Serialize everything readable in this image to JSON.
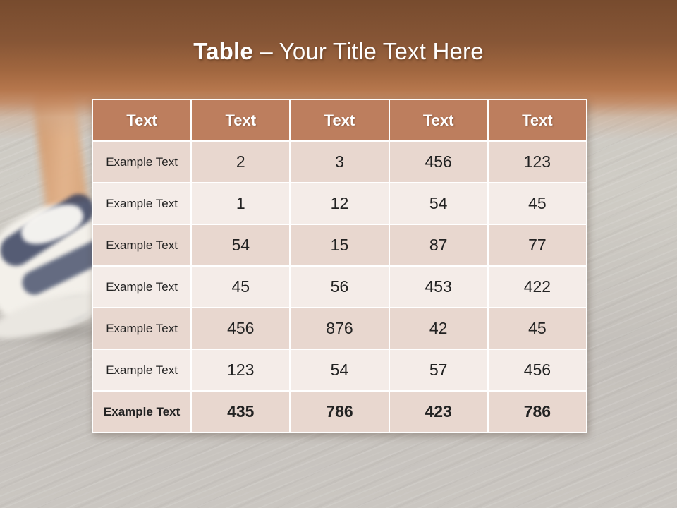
{
  "slide": {
    "title": {
      "bold": "Table",
      "rest": "– Your Title Text Here"
    }
  },
  "table": {
    "headers": [
      "Text",
      "Text",
      "Text",
      "Text",
      "Text"
    ],
    "rows": [
      {
        "label": "Example Text",
        "values": [
          "2",
          "3",
          "456",
          "123"
        ]
      },
      {
        "label": "Example Text",
        "values": [
          "1",
          "12",
          "54",
          "45"
        ]
      },
      {
        "label": "Example Text",
        "values": [
          "54",
          "15",
          "87",
          "77"
        ]
      },
      {
        "label": "Example Text",
        "values": [
          "45",
          "56",
          "453",
          "422"
        ]
      },
      {
        "label": "Example Text",
        "values": [
          "456",
          "876",
          "42",
          "45"
        ]
      },
      {
        "label": "Example Text",
        "values": [
          "123",
          "54",
          "57",
          "456"
        ]
      },
      {
        "label": "Example Text",
        "values": [
          "435",
          "786",
          "423",
          "786"
        ]
      }
    ]
  },
  "colors": {
    "header_bg": "#bd7e5e",
    "band_dark": "#e8d7cf",
    "band_light": "#f4ece8",
    "cell_border": "#ffffff",
    "title_text": "#ffffff",
    "top_gradient_start": "#774b2e",
    "top_gradient_end": "#b5764c",
    "asphalt_gray": "#c6c2bd"
  },
  "background": {
    "description": "blurred photo of runner leg and white-navy running shoe on asphalt"
  }
}
